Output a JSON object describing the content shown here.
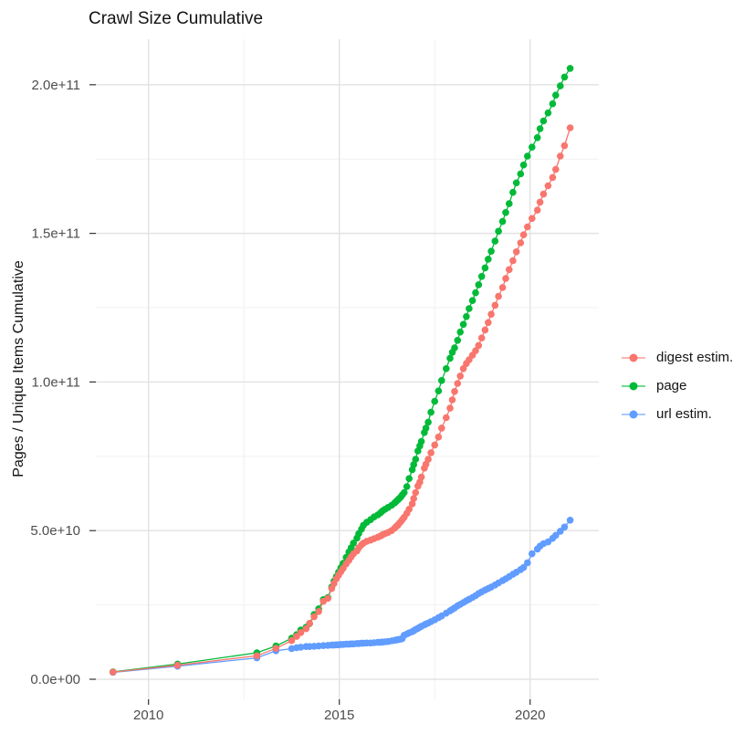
{
  "chart_data": {
    "type": "line",
    "title": "Crawl Size Cumulative",
    "xlabel": "",
    "ylabel": "Pages / Unique Items Cumulative",
    "y_unit": "1e11",
    "x_domain": [
      2008.62,
      2021.8
    ],
    "y_domain": [
      -0.0675,
      2.153
    ],
    "grid": {
      "major_color": "#e2e2e2",
      "minor_color": "#f0f0f0",
      "x_major": [
        2010,
        2015,
        2020
      ],
      "x_minor": [
        2012.5,
        2017.5
      ],
      "y_major": [
        0,
        0.5,
        1.0,
        1.5,
        2.0
      ],
      "y_minor": [
        0.25,
        0.75,
        1.25,
        1.75
      ]
    },
    "x_ticks": [
      {
        "value": 2010,
        "label": "2010"
      },
      {
        "value": 2015,
        "label": "2015"
      },
      {
        "value": 2020,
        "label": "2020"
      }
    ],
    "y_ticks": [
      {
        "value": 0.0,
        "label": "0.0e+00"
      },
      {
        "value": 0.5,
        "label": "5.0e+10"
      },
      {
        "value": 1.0,
        "label": "1.0e+11"
      },
      {
        "value": 1.5,
        "label": "1.5e+11"
      },
      {
        "value": 2.0,
        "label": "2.0e+11"
      }
    ],
    "legend_position": "right",
    "x": [
      2009.07,
      2010.76,
      2012.84,
      2013.34,
      2013.75,
      2013.88,
      2013.99,
      2014.13,
      2014.22,
      2014.34,
      2014.46,
      2014.58,
      2014.7,
      2014.8,
      2014.86,
      2014.92,
      2014.98,
      2015.04,
      2015.1,
      2015.18,
      2015.25,
      2015.31,
      2015.37,
      2015.46,
      2015.51,
      2015.58,
      2015.63,
      2015.72,
      2015.82,
      2015.91,
      2016.01,
      2016.08,
      2016.13,
      2016.2,
      2016.28,
      2016.37,
      2016.45,
      2016.49,
      2016.53,
      2016.56,
      2016.61,
      2016.65,
      2016.7,
      2016.77,
      2016.83,
      2016.91,
      2016.95,
      2017.0,
      2017.06,
      2017.11,
      2017.15,
      2017.23,
      2017.27,
      2017.33,
      2017.4,
      2017.5,
      2017.6,
      2017.68,
      2017.8,
      2017.9,
      2017.96,
      2018.02,
      2018.1,
      2018.17,
      2018.25,
      2018.33,
      2018.4,
      2018.49,
      2018.57,
      2018.65,
      2018.73,
      2018.82,
      2018.9,
      2018.98,
      2019.08,
      2019.17,
      2019.28,
      2019.36,
      2019.45,
      2019.55,
      2019.64,
      2019.75,
      2019.83,
      2019.93,
      2020.05,
      2020.19,
      2020.26,
      2020.35,
      2020.47,
      2020.59,
      2020.67,
      2020.79,
      2020.9,
      2021.05
    ],
    "series": [
      {
        "name": "digest estim.",
        "color": "#F8766D",
        "values": [
          0.024,
          0.047,
          0.079,
          0.104,
          0.13,
          0.144,
          0.157,
          0.17,
          0.188,
          0.21,
          0.228,
          0.262,
          0.272,
          0.305,
          0.322,
          0.338,
          0.35,
          0.362,
          0.373,
          0.388,
          0.4,
          0.412,
          0.422,
          0.432,
          0.442,
          0.452,
          0.458,
          0.464,
          0.468,
          0.473,
          0.478,
          0.482,
          0.486,
          0.49,
          0.494,
          0.5,
          0.508,
          0.514,
          0.518,
          0.523,
          0.53,
          0.537,
          0.545,
          0.558,
          0.572,
          0.59,
          0.608,
          0.628,
          0.65,
          0.663,
          0.68,
          0.71,
          0.723,
          0.74,
          0.762,
          0.788,
          0.815,
          0.845,
          0.88,
          0.912,
          0.94,
          0.968,
          0.995,
          1.02,
          1.045,
          1.062,
          1.075,
          1.09,
          1.105,
          1.123,
          1.148,
          1.175,
          1.2,
          1.228,
          1.258,
          1.288,
          1.318,
          1.348,
          1.378,
          1.408,
          1.438,
          1.468,
          1.495,
          1.522,
          1.55,
          1.578,
          1.605,
          1.632,
          1.66,
          1.688,
          1.715,
          1.76,
          1.795,
          1.855
        ]
      },
      {
        "name": "page",
        "color": "#00BA38",
        "values": [
          0.025,
          0.051,
          0.089,
          0.112,
          0.138,
          0.15,
          0.166,
          0.175,
          0.187,
          0.218,
          0.237,
          0.268,
          0.275,
          0.31,
          0.33,
          0.345,
          0.36,
          0.375,
          0.39,
          0.41,
          0.428,
          0.442,
          0.458,
          0.475,
          0.49,
          0.505,
          0.518,
          0.528,
          0.537,
          0.546,
          0.553,
          0.56,
          0.566,
          0.572,
          0.578,
          0.585,
          0.593,
          0.598,
          0.603,
          0.607,
          0.613,
          0.62,
          0.628,
          0.648,
          0.675,
          0.705,
          0.722,
          0.74,
          0.768,
          0.785,
          0.8,
          0.83,
          0.845,
          0.865,
          0.898,
          0.935,
          0.97,
          1.005,
          1.045,
          1.08,
          1.1,
          1.115,
          1.14,
          1.168,
          1.194,
          1.22,
          1.247,
          1.274,
          1.3,
          1.327,
          1.355,
          1.384,
          1.413,
          1.44,
          1.474,
          1.507,
          1.54,
          1.57,
          1.6,
          1.638,
          1.67,
          1.7,
          1.73,
          1.76,
          1.79,
          1.822,
          1.852,
          1.878,
          1.905,
          1.936,
          1.965,
          1.996,
          2.026,
          2.055
        ]
      },
      {
        "name": "url estim.",
        "color": "#619CFF",
        "values": [
          0.023,
          0.044,
          0.072,
          0.096,
          0.103,
          0.106,
          0.108,
          0.11,
          0.11,
          0.111,
          0.112,
          0.113,
          0.114,
          0.115,
          0.115,
          0.116,
          0.116,
          0.117,
          0.117,
          0.118,
          0.118,
          0.119,
          0.119,
          0.12,
          0.12,
          0.121,
          0.121,
          0.122,
          0.122,
          0.123,
          0.124,
          0.124,
          0.125,
          0.126,
          0.127,
          0.129,
          0.131,
          0.132,
          0.133,
          0.134,
          0.135,
          0.137,
          0.148,
          0.152,
          0.156,
          0.16,
          0.163,
          0.167,
          0.171,
          0.175,
          0.178,
          0.183,
          0.186,
          0.189,
          0.194,
          0.2,
          0.207,
          0.213,
          0.222,
          0.23,
          0.235,
          0.24,
          0.247,
          0.252,
          0.258,
          0.264,
          0.269,
          0.275,
          0.281,
          0.288,
          0.294,
          0.3,
          0.305,
          0.31,
          0.317,
          0.324,
          0.332,
          0.338,
          0.345,
          0.353,
          0.36,
          0.369,
          0.376,
          0.392,
          0.422,
          0.438,
          0.448,
          0.456,
          0.462,
          0.474,
          0.484,
          0.498,
          0.512,
          0.535
        ]
      }
    ]
  }
}
